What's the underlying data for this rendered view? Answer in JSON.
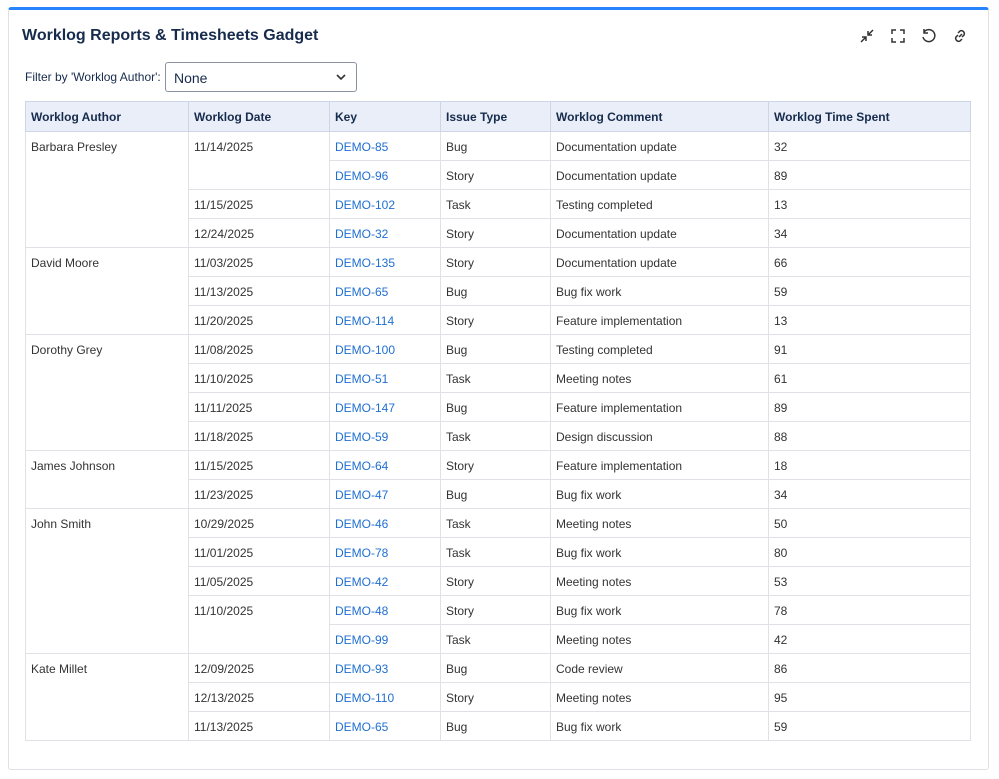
{
  "header": {
    "title": "Worklog Reports & Timesheets Gadget"
  },
  "filter": {
    "label": "Filter by 'Worklog Author':",
    "value": "None"
  },
  "table": {
    "columns": [
      "Worklog Author",
      "Worklog Date",
      "Key",
      "Issue Type",
      "Worklog Comment",
      "Worklog Time Spent"
    ],
    "authors": [
      {
        "name": "Barbara Presley",
        "dates": [
          {
            "date": "11/14/2025",
            "entries": [
              {
                "key": "DEMO-85",
                "type": "Bug",
                "comment": "Documentation update",
                "time": 32
              },
              {
                "key": "DEMO-96",
                "type": "Story",
                "comment": "Documentation update",
                "time": 89
              }
            ]
          },
          {
            "date": "11/15/2025",
            "entries": [
              {
                "key": "DEMO-102",
                "type": "Task",
                "comment": "Testing completed",
                "time": 13
              }
            ]
          },
          {
            "date": "12/24/2025",
            "entries": [
              {
                "key": "DEMO-32",
                "type": "Story",
                "comment": "Documentation update",
                "time": 34
              }
            ]
          }
        ]
      },
      {
        "name": "David Moore",
        "dates": [
          {
            "date": "11/03/2025",
            "entries": [
              {
                "key": "DEMO-135",
                "type": "Story",
                "comment": "Documentation update",
                "time": 66
              }
            ]
          },
          {
            "date": "11/13/2025",
            "entries": [
              {
                "key": "DEMO-65",
                "type": "Bug",
                "comment": "Bug fix work",
                "time": 59
              }
            ]
          },
          {
            "date": "11/20/2025",
            "entries": [
              {
                "key": "DEMO-114",
                "type": "Story",
                "comment": "Feature implementation",
                "time": 13
              }
            ]
          }
        ]
      },
      {
        "name": "Dorothy Grey",
        "dates": [
          {
            "date": "11/08/2025",
            "entries": [
              {
                "key": "DEMO-100",
                "type": "Bug",
                "comment": "Testing completed",
                "time": 91
              }
            ]
          },
          {
            "date": "11/10/2025",
            "entries": [
              {
                "key": "DEMO-51",
                "type": "Task",
                "comment": "Meeting notes",
                "time": 61
              }
            ]
          },
          {
            "date": "11/11/2025",
            "entries": [
              {
                "key": "DEMO-147",
                "type": "Bug",
                "comment": "Feature implementation",
                "time": 89
              }
            ]
          },
          {
            "date": "11/18/2025",
            "entries": [
              {
                "key": "DEMO-59",
                "type": "Task",
                "comment": "Design discussion",
                "time": 88
              }
            ]
          }
        ]
      },
      {
        "name": "James Johnson",
        "dates": [
          {
            "date": "11/15/2025",
            "entries": [
              {
                "key": "DEMO-64",
                "type": "Story",
                "comment": "Feature implementation",
                "time": 18
              }
            ]
          },
          {
            "date": "11/23/2025",
            "entries": [
              {
                "key": "DEMO-47",
                "type": "Bug",
                "comment": "Bug fix work",
                "time": 34
              }
            ]
          }
        ]
      },
      {
        "name": "John Smith",
        "dates": [
          {
            "date": "10/29/2025",
            "entries": [
              {
                "key": "DEMO-46",
                "type": "Task",
                "comment": "Meeting notes",
                "time": 50
              }
            ]
          },
          {
            "date": "11/01/2025",
            "entries": [
              {
                "key": "DEMO-78",
                "type": "Task",
                "comment": "Bug fix work",
                "time": 80
              }
            ]
          },
          {
            "date": "11/05/2025",
            "entries": [
              {
                "key": "DEMO-42",
                "type": "Story",
                "comment": "Meeting notes",
                "time": 53
              }
            ]
          },
          {
            "date": "11/10/2025",
            "entries": [
              {
                "key": "DEMO-48",
                "type": "Story",
                "comment": "Bug fix work",
                "time": 78
              },
              {
                "key": "DEMO-99",
                "type": "Task",
                "comment": "Meeting notes",
                "time": 42
              }
            ]
          }
        ]
      },
      {
        "name": "Kate Millet",
        "dates": [
          {
            "date": "12/09/2025",
            "entries": [
              {
                "key": "DEMO-93",
                "type": "Bug",
                "comment": "Code review",
                "time": 86
              }
            ]
          },
          {
            "date": "12/13/2025",
            "entries": [
              {
                "key": "DEMO-110",
                "type": "Story",
                "comment": "Meeting notes",
                "time": 95
              }
            ]
          },
          {
            "date": "11/13/2025",
            "entries": [
              {
                "key": "DEMO-65",
                "type": "Bug",
                "comment": "Bug fix work",
                "time": 59
              }
            ]
          }
        ]
      }
    ]
  }
}
